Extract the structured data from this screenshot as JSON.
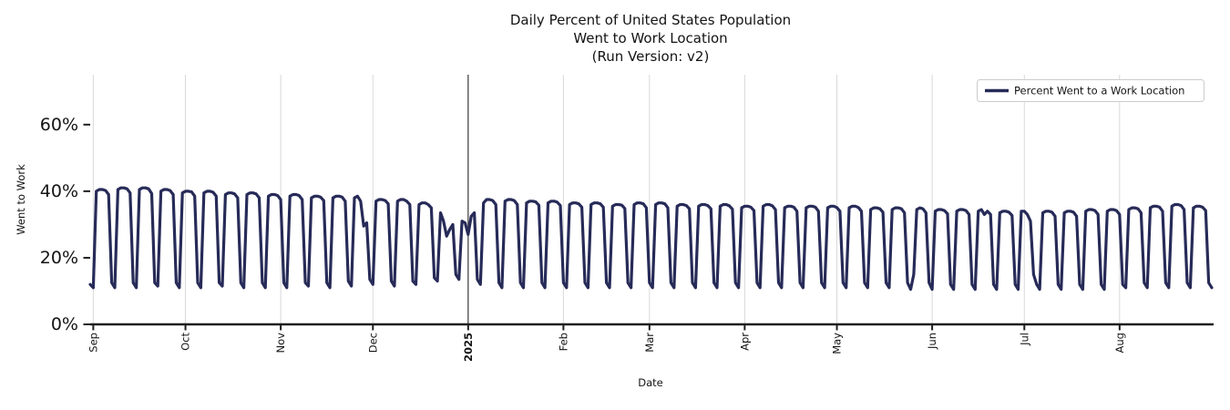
{
  "title": {
    "lines": [
      "Daily Percent of United States Population",
      "Went to Work Location",
      "(Run Version: v2)"
    ]
  },
  "chart_data": {
    "type": "line",
    "title": "Daily Percent of United States Population Went to Work Location (Run Version: v2)",
    "xlabel": "Date",
    "ylabel": "Went to Work",
    "legend_label": "Percent Went to a Work Location",
    "legend_position": "upper right",
    "grid": "vertical month gridlines only",
    "ylim": [
      0,
      75
    ],
    "ytick_values": [
      0,
      20,
      40,
      60
    ],
    "ytick_labels": [
      "0%",
      "20%",
      "40%",
      "60%"
    ],
    "x_start_date": "2024-08-31",
    "x_end_date": "2025-08-31",
    "x_ticks": [
      {
        "label": "Sep",
        "day": 1
      },
      {
        "label": "Oct",
        "day": 31
      },
      {
        "label": "Nov",
        "day": 62
      },
      {
        "label": "Dec",
        "day": 92
      },
      {
        "label": "2025",
        "day": 123,
        "bold": true
      },
      {
        "label": "Feb",
        "day": 154
      },
      {
        "label": "Mar",
        "day": 182
      },
      {
        "label": "Apr",
        "day": 213
      },
      {
        "label": "May",
        "day": 243
      },
      {
        "label": "Jun",
        "day": 274
      },
      {
        "label": "Jul",
        "day": 304
      },
      {
        "label": "Aug",
        "day": 335
      }
    ],
    "year_line_day": 123,
    "lead_in_values": [
      12,
      11
    ],
    "weeks_start_monday": "2024-09-02",
    "weekly_values": [
      [
        40,
        40.5,
        40.5,
        40.2,
        39,
        12.5,
        11
      ],
      [
        40.5,
        41,
        41,
        40.7,
        39.5,
        12.5,
        11
      ],
      [
        40.5,
        41,
        41,
        40.7,
        39.3,
        12.5,
        11.5
      ],
      [
        40,
        40.5,
        40.5,
        40.2,
        39,
        12.5,
        11
      ],
      [
        39.5,
        40,
        40,
        39.8,
        38.5,
        12.5,
        11
      ],
      [
        39.5,
        40,
        40,
        39.7,
        38.5,
        12.5,
        11.5
      ],
      [
        39,
        39.5,
        39.5,
        39.2,
        38,
        12.5,
        11
      ],
      [
        39,
        39.5,
        39.5,
        39.2,
        38,
        12.5,
        11
      ],
      [
        38.5,
        39,
        39,
        38.7,
        37.5,
        12.5,
        11
      ],
      [
        38.5,
        39,
        39,
        38.7,
        37.5,
        12.5,
        11.5
      ],
      [
        38,
        38.5,
        38.5,
        38.2,
        37.2,
        12.5,
        11
      ],
      [
        38,
        38.5,
        38.5,
        38.2,
        37,
        13,
        11.5
      ],
      [
        38,
        38.5,
        37,
        29.5,
        30.5,
        13.5,
        12
      ],
      [
        37,
        37.5,
        37.5,
        37.2,
        36.2,
        13,
        11.5
      ],
      [
        37,
        37.5,
        37.5,
        37,
        36,
        13,
        12
      ],
      [
        36,
        36.5,
        36.5,
        36,
        35,
        14,
        13
      ],
      [
        33.5,
        31,
        26.5,
        28.5,
        30,
        15,
        13.5
      ],
      [
        31,
        30.5,
        27,
        32.5,
        33.5,
        13.5,
        12
      ],
      [
        36.5,
        37.5,
        37.5,
        37.2,
        36,
        12.5,
        11
      ],
      [
        37,
        37.5,
        37.5,
        37.2,
        36,
        12.5,
        11
      ],
      [
        36.5,
        37,
        37,
        36.8,
        35.8,
        12.5,
        11
      ],
      [
        36.5,
        37,
        37,
        36.7,
        35.7,
        12.5,
        11
      ],
      [
        36,
        36.5,
        36.5,
        36.2,
        35.2,
        12.5,
        11
      ],
      [
        36,
        36.5,
        36.5,
        36.2,
        35.2,
        12.5,
        11
      ],
      [
        35.5,
        36,
        36,
        35.8,
        34.8,
        12.5,
        11
      ],
      [
        36,
        36.5,
        36.5,
        36.2,
        35,
        12.5,
        11
      ],
      [
        36,
        36.5,
        36.5,
        36.2,
        35,
        12.5,
        11
      ],
      [
        35.5,
        36,
        36,
        35.7,
        34.7,
        12.5,
        11
      ],
      [
        35.5,
        36,
        36,
        35.7,
        34.7,
        12.5,
        11
      ],
      [
        35.5,
        36,
        36,
        35.6,
        34.6,
        12.5,
        11
      ],
      [
        35,
        35.5,
        35.5,
        35.2,
        34.2,
        12.5,
        11
      ],
      [
        35.5,
        36,
        36,
        35.6,
        34.5,
        12.5,
        11
      ],
      [
        35,
        35.5,
        35.5,
        35.2,
        34,
        12.5,
        11
      ],
      [
        35,
        35.5,
        35.5,
        35.2,
        34,
        12.5,
        11
      ],
      [
        35,
        35.5,
        35.5,
        35.1,
        34,
        12.5,
        11
      ],
      [
        35,
        35.5,
        35.5,
        35.1,
        34,
        12.5,
        11
      ],
      [
        34.5,
        35,
        35,
        34.7,
        33.7,
        12.5,
        11
      ],
      [
        34.5,
        35,
        35,
        34.7,
        33.5,
        12.5,
        10.5
      ],
      [
        15,
        34.5,
        35,
        34.7,
        33.5,
        12.5,
        10.5
      ],
      [
        34,
        34.5,
        34.5,
        34.2,
        33.2,
        12,
        10.5
      ],
      [
        34,
        34.5,
        34.5,
        34.2,
        33,
        12,
        10.5
      ],
      [
        34,
        34.5,
        33,
        34,
        33,
        12,
        10.5
      ],
      [
        33.5,
        34,
        34,
        33.7,
        32.7,
        12,
        10.5
      ],
      [
        34,
        34,
        33,
        31,
        15,
        12,
        10.5
      ],
      [
        33.5,
        34,
        34,
        33.7,
        32.5,
        12,
        10.5
      ],
      [
        33.5,
        34,
        34,
        33.7,
        32.5,
        12,
        10.5
      ],
      [
        34,
        34.5,
        34.5,
        34.2,
        33,
        12,
        10.5
      ],
      [
        34,
        34.5,
        34.5,
        34.2,
        33,
        12,
        11
      ],
      [
        34.5,
        35,
        35,
        34.7,
        33.5,
        12.5,
        11
      ],
      [
        35,
        35.5,
        35.5,
        35.2,
        34,
        12.5,
        11
      ],
      [
        35.5,
        36,
        36,
        35.7,
        34.5,
        12.5,
        11
      ],
      [
        35,
        35.5,
        35.5,
        35.2,
        34.2,
        12.5,
        11
      ]
    ],
    "colors": {
      "line": "#272b58",
      "year_line": "#3d3d3d",
      "grid": "#d9d9d9",
      "axis": "#1f1f1f",
      "text": "#141414",
      "legend_border": "#cccccc"
    }
  }
}
